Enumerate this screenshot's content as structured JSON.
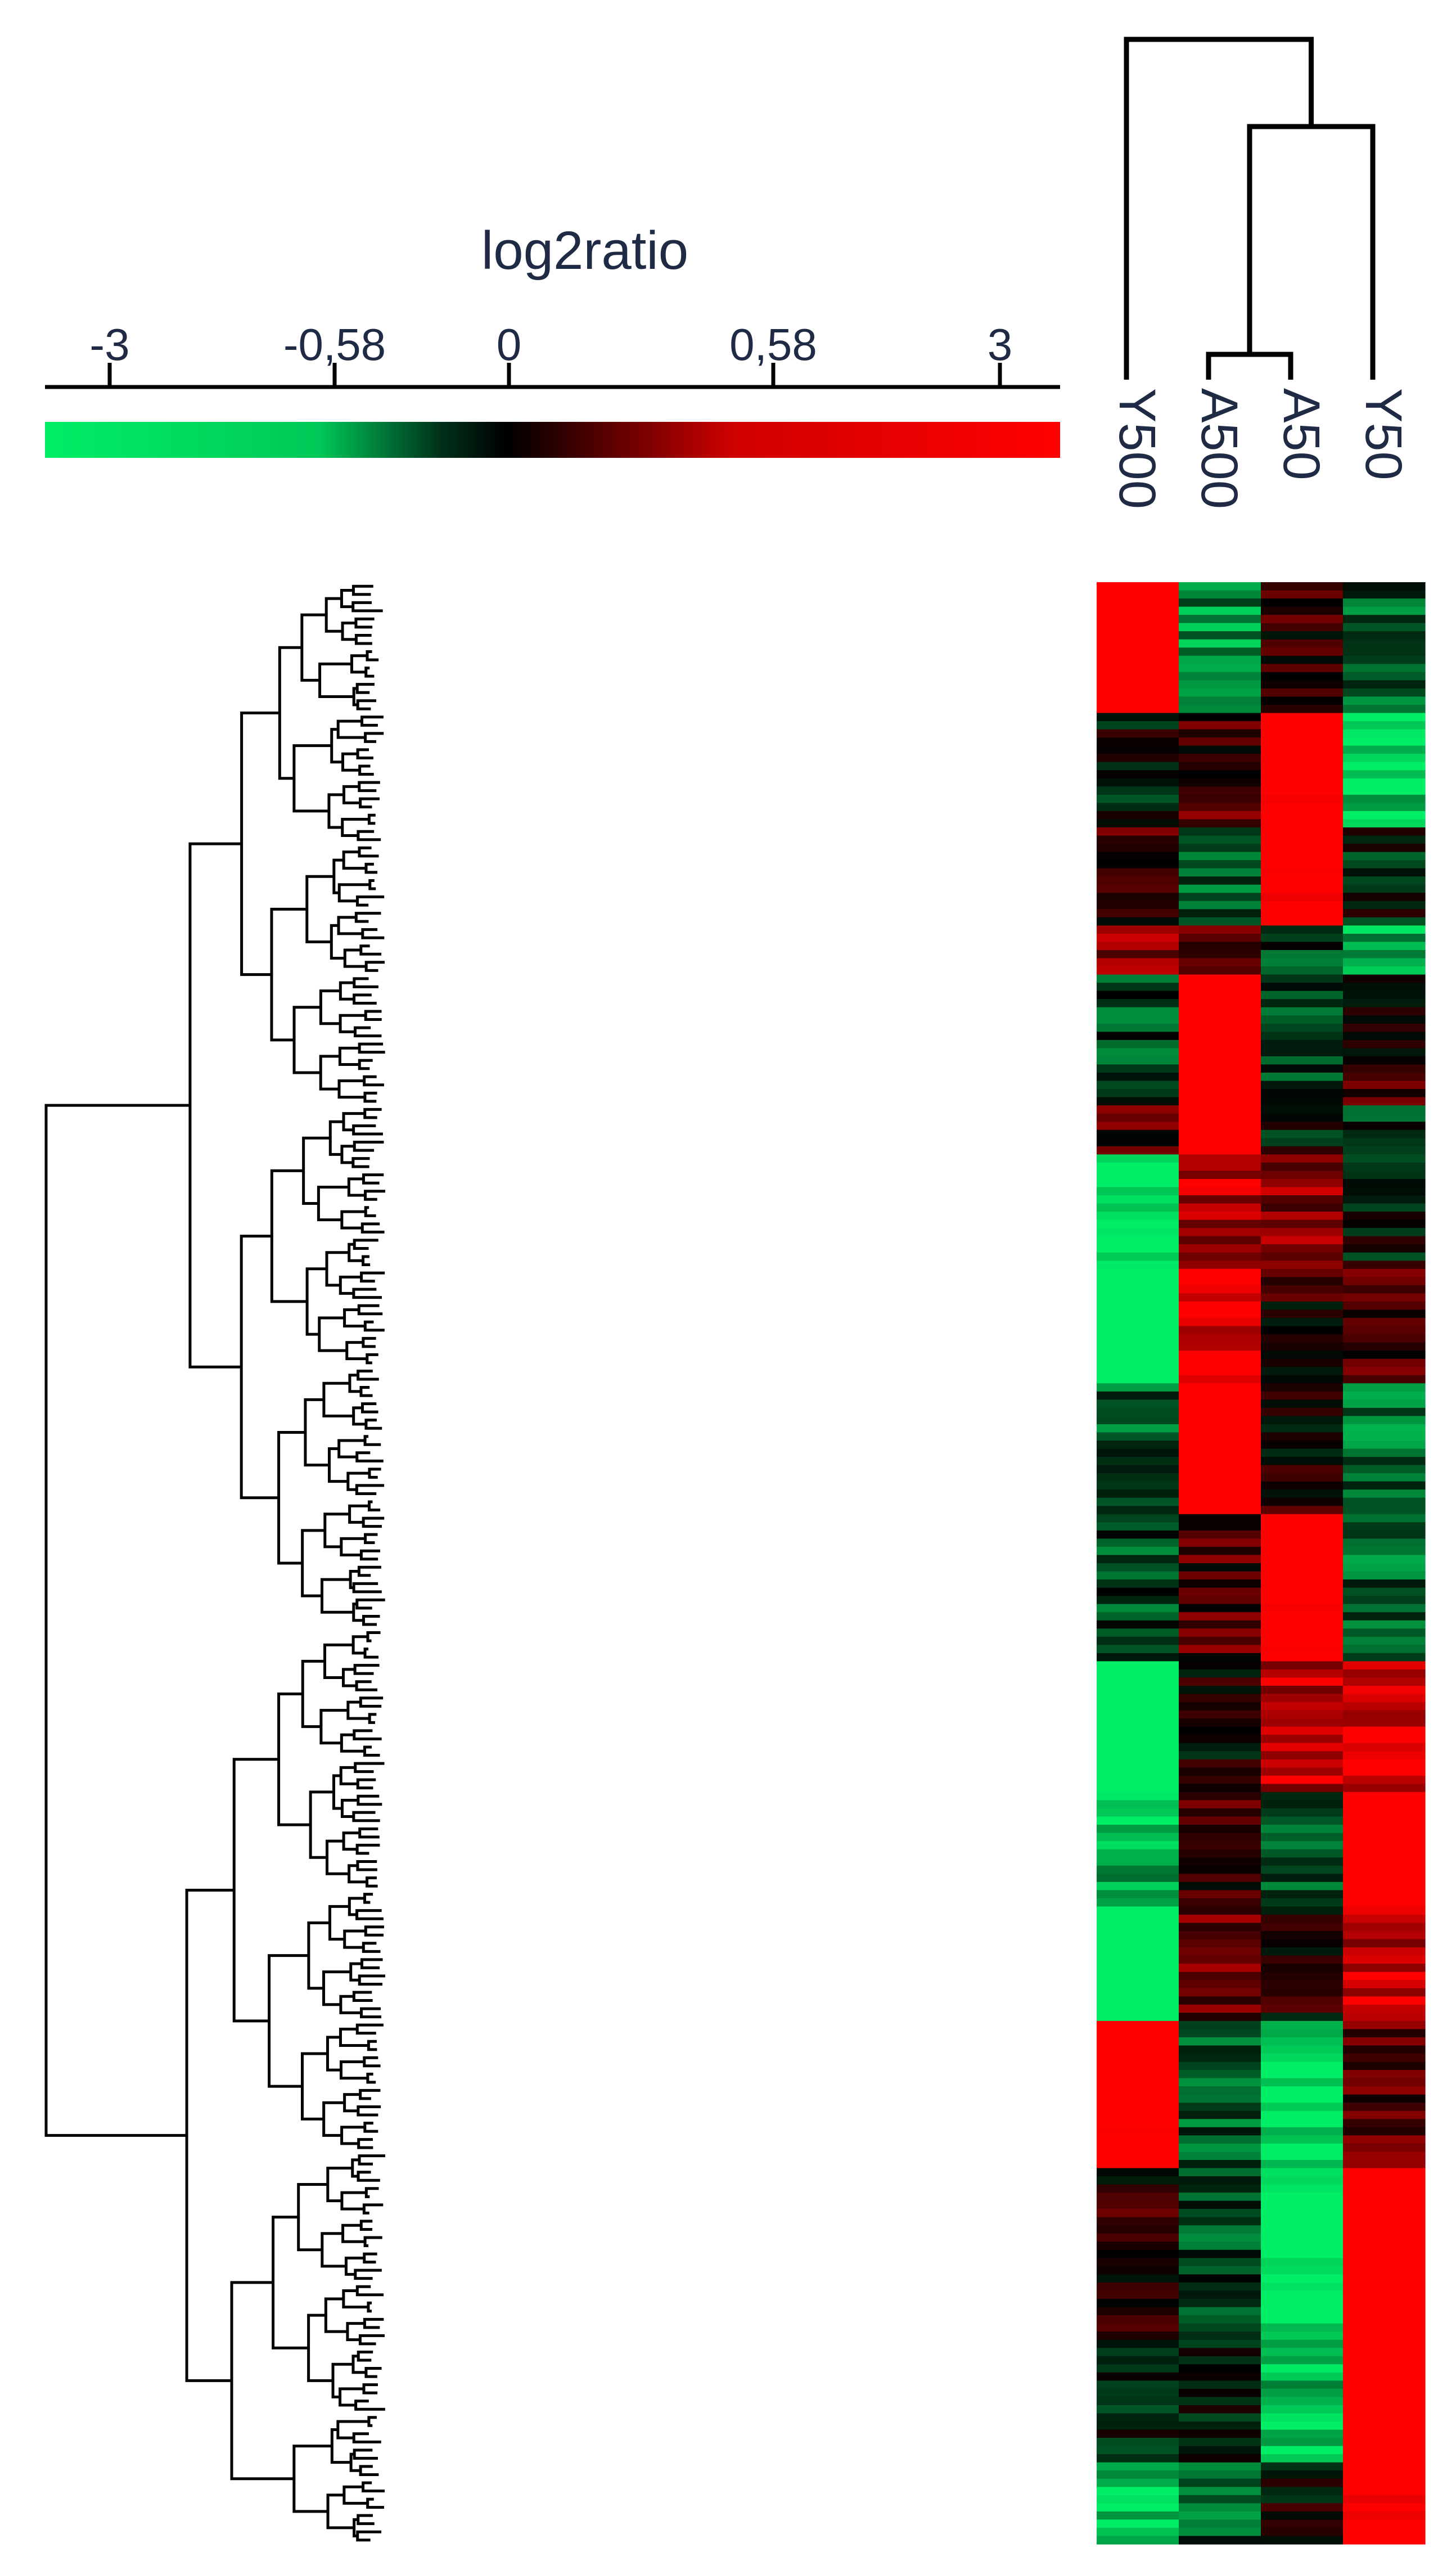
{
  "chart_data": {
    "type": "heatmap",
    "title": "log2ratio",
    "color_scale": {
      "tick_labels": [
        "-3",
        "-0,58",
        "0",
        "0,58",
        "3"
      ],
      "tick_values": [
        -3,
        -0.58,
        0,
        0.58,
        3
      ],
      "range": [
        -3,
        3
      ],
      "low_color": "#00ee66",
      "mid_color": "#000000",
      "high_color": "#ff0000"
    },
    "columns": [
      "Y500",
      "A500",
      "A50",
      "Y50"
    ],
    "column_dendrogram": {
      "merges": [
        [
          "A500",
          "A50"
        ],
        [
          "A500+A50",
          "Y50"
        ],
        [
          "A500+A50+Y50",
          "Y500"
        ]
      ]
    },
    "row_count": 240,
    "row_blocks": [
      {
        "rows": 16,
        "values": [
          3.0,
          -1.3,
          0.4,
          -0.8
        ]
      },
      {
        "rows": 14,
        "values": [
          -0.1,
          0.6,
          2.7,
          -2.0
        ]
      },
      {
        "rows": 12,
        "values": [
          0.5,
          -0.9,
          2.6,
          -0.3
        ]
      },
      {
        "rows": 6,
        "values": [
          1.2,
          0.8,
          -0.5,
          -1.5
        ]
      },
      {
        "rows": 16,
        "values": [
          -0.7,
          2.9,
          -0.6,
          0.4
        ]
      },
      {
        "rows": 6,
        "values": [
          0.6,
          2.9,
          -0.2,
          -0.4
        ]
      },
      {
        "rows": 14,
        "values": [
          -2.4,
          1.5,
          1.2,
          -0.2
        ]
      },
      {
        "rows": 14,
        "values": [
          -2.9,
          2.0,
          0.2,
          0.5
        ]
      },
      {
        "rows": 16,
        "values": [
          -0.9,
          2.8,
          0.3,
          -1.0
        ]
      },
      {
        "rows": 18,
        "values": [
          -0.6,
          0.6,
          2.8,
          -0.9
        ]
      },
      {
        "rows": 16,
        "values": [
          -2.8,
          0.2,
          1.6,
          1.8
        ]
      },
      {
        "rows": 14,
        "values": [
          -1.5,
          0.5,
          -0.7,
          2.9
        ]
      },
      {
        "rows": 14,
        "values": [
          -2.8,
          1.0,
          0.2,
          1.7
        ]
      },
      {
        "rows": 18,
        "values": [
          2.8,
          -0.8,
          -2.2,
          0.7
        ]
      },
      {
        "rows": 20,
        "values": [
          0.4,
          -0.7,
          -2.4,
          2.9
        ]
      },
      {
        "rows": 16,
        "values": [
          -0.2,
          -0.4,
          -1.8,
          2.9
        ]
      },
      {
        "rows": 10,
        "values": [
          -1.9,
          -0.8,
          0.1,
          2.7
        ]
      }
    ]
  }
}
